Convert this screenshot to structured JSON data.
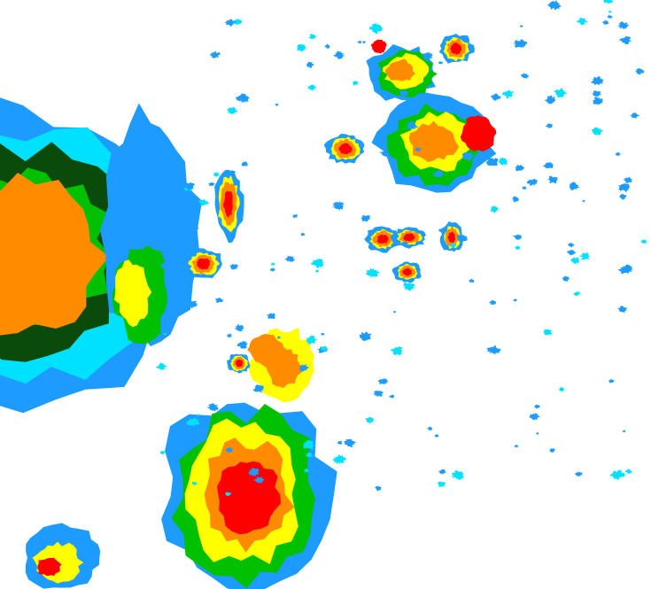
{
  "map": {
    "type": "radar-reflectivity-overlay",
    "background": "#ffffff",
    "palette": {
      "light_blue": "#1e9bff",
      "cyan": "#00e0ff",
      "dark_green": "#0a4a0a",
      "green": "#00c000",
      "yellow": "#ffff00",
      "orange": "#ff8c00",
      "red": "#ff0000"
    }
  }
}
